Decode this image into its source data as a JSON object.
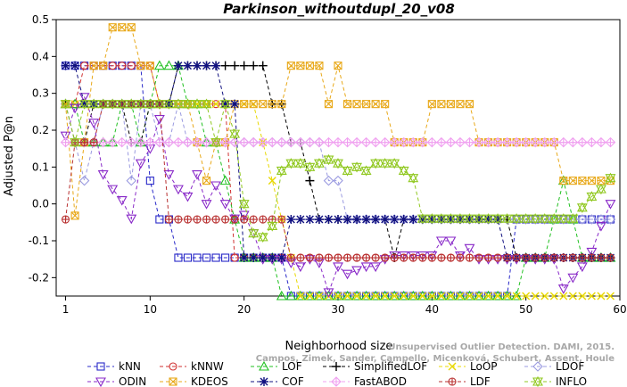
{
  "chart_data": {
    "type": "line",
    "title": "Parkinson_withoutdupl_20_v08",
    "xlabel": "Neighborhood size",
    "ylabel": "Adjusted P@n",
    "xlim": [
      0,
      60
    ],
    "ylim": [
      -0.25,
      0.5
    ],
    "x_ticks": [
      1,
      10,
      20,
      30,
      40,
      50,
      60
    ],
    "y_ticks": [
      -0.2,
      -0.1,
      0.0,
      0.1,
      0.2,
      0.3,
      0.4,
      0.5
    ],
    "y_tick_labels": [
      "-0.2",
      "-0.1",
      "0.0",
      "0.1",
      "0.2",
      "0.3",
      "0.4",
      "0.5"
    ],
    "grid": false,
    "legend_position": "bottom",
    "credit": [
      "Campos, Zimek, Sander, Campello, Micenková, Schubert, Assent, Houle",
      "Unsupervised Outlier Detection. DAMI, 2015."
    ],
    "x": [
      1,
      2,
      3,
      4,
      5,
      6,
      7,
      8,
      9,
      10,
      11,
      12,
      13,
      14,
      15,
      16,
      17,
      18,
      19,
      20,
      21,
      22,
      23,
      24,
      25,
      26,
      27,
      28,
      29,
      30,
      31,
      32,
      33,
      34,
      35,
      36,
      37,
      38,
      39,
      40,
      41,
      42,
      43,
      44,
      45,
      46,
      47,
      48,
      49,
      50,
      51,
      52,
      53,
      54,
      55,
      56,
      57,
      58,
      59
    ],
    "series": [
      {
        "name": "kNN",
        "color": "#2828c8",
        "marker": "square",
        "values": [
          0.375,
          0.375,
          0.375,
          0.375,
          0.375,
          0.375,
          0.375,
          0.375,
          0.375,
          0.063,
          -0.042,
          -0.042,
          -0.146,
          -0.146,
          -0.146,
          -0.146,
          -0.146,
          -0.146,
          -0.146,
          -0.146,
          -0.146,
          -0.146,
          -0.146,
          -0.146,
          -0.25,
          -0.25,
          -0.25,
          -0.25,
          -0.25,
          -0.25,
          -0.25,
          -0.25,
          -0.25,
          -0.25,
          -0.25,
          -0.25,
          -0.25,
          -0.25,
          -0.25,
          -0.25,
          -0.25,
          -0.25,
          -0.25,
          -0.25,
          -0.25,
          -0.25,
          -0.25,
          -0.25,
          -0.042,
          -0.042,
          -0.042,
          -0.042,
          -0.042,
          -0.042,
          -0.042,
          -0.042,
          -0.042,
          -0.042,
          -0.042
        ]
      },
      {
        "name": "kNNW",
        "color": "#d03030",
        "marker": "circle",
        "values": [
          0.271,
          0.271,
          0.375,
          0.375,
          0.375,
          0.375,
          0.375,
          0.375,
          0.375,
          0.375,
          0.271,
          0.271,
          0.271,
          0.271,
          0.271,
          0.271,
          0.271,
          0.271,
          -0.146,
          -0.146,
          -0.146,
          -0.146,
          -0.146,
          -0.146,
          -0.146,
          -0.146,
          -0.146,
          -0.146,
          -0.146,
          -0.146,
          -0.146,
          -0.146,
          -0.146,
          -0.146,
          -0.146,
          -0.146,
          -0.146,
          -0.146,
          -0.146,
          -0.146,
          -0.146,
          -0.146,
          -0.146,
          -0.146,
          -0.146,
          -0.146,
          -0.146,
          -0.146,
          -0.146,
          -0.146,
          -0.146,
          -0.146,
          -0.146,
          -0.146,
          -0.146,
          -0.146,
          -0.146,
          -0.146,
          -0.146
        ]
      },
      {
        "name": "LOF",
        "color": "#20c020",
        "marker": "triangle",
        "values": [
          0.271,
          0.271,
          0.167,
          0.167,
          0.167,
          0.167,
          0.271,
          0.271,
          0.167,
          0.271,
          0.375,
          0.375,
          0.375,
          0.271,
          0.271,
          0.167,
          0.167,
          0.063,
          -0.042,
          -0.146,
          -0.146,
          -0.146,
          -0.146,
          -0.25,
          -0.25,
          -0.25,
          -0.25,
          -0.25,
          -0.25,
          -0.25,
          -0.25,
          -0.25,
          -0.25,
          -0.25,
          -0.25,
          -0.25,
          -0.25,
          -0.25,
          -0.25,
          -0.25,
          -0.25,
          -0.25,
          -0.25,
          -0.25,
          -0.25,
          -0.25,
          -0.25,
          -0.25,
          -0.25,
          -0.146,
          -0.146,
          -0.146,
          -0.042,
          0.063,
          -0.042,
          -0.146,
          -0.146,
          -0.146,
          -0.146
        ]
      },
      {
        "name": "SimplifiedLOF",
        "color": "#000000",
        "marker": "plus",
        "values": [
          0.271,
          0.167,
          0.167,
          0.271,
          0.271,
          0.271,
          0.271,
          0.167,
          0.167,
          0.271,
          0.271,
          0.271,
          0.375,
          0.375,
          0.375,
          0.375,
          0.375,
          0.375,
          0.375,
          0.375,
          0.375,
          0.375,
          0.271,
          0.271,
          0.167,
          0.167,
          0.063,
          -0.042,
          -0.042,
          -0.042,
          -0.042,
          -0.042,
          -0.042,
          -0.042,
          -0.042,
          -0.146,
          -0.042,
          -0.042,
          -0.042,
          -0.042,
          -0.042,
          -0.042,
          -0.042,
          -0.042,
          -0.042,
          -0.042,
          -0.042,
          -0.042,
          -0.146,
          -0.146,
          -0.146,
          -0.146,
          -0.146,
          -0.146,
          -0.146,
          -0.146,
          -0.146,
          -0.146,
          -0.146
        ]
      },
      {
        "name": "LoOP",
        "color": "#e8d800",
        "marker": "x",
        "values": [
          0.271,
          0.271,
          0.271,
          0.271,
          0.271,
          0.271,
          0.271,
          0.271,
          0.271,
          0.271,
          0.271,
          0.271,
          0.271,
          0.271,
          0.271,
          0.271,
          0.271,
          0.271,
          0.271,
          0.271,
          0.271,
          0.167,
          0.063,
          -0.042,
          -0.146,
          -0.25,
          -0.25,
          -0.25,
          -0.25,
          -0.25,
          -0.25,
          -0.25,
          -0.25,
          -0.25,
          -0.25,
          -0.25,
          -0.25,
          -0.25,
          -0.25,
          -0.25,
          -0.25,
          -0.25,
          -0.25,
          -0.25,
          -0.25,
          -0.25,
          -0.25,
          -0.25,
          -0.25,
          -0.25,
          -0.25,
          -0.25,
          -0.25,
          -0.25,
          -0.25,
          -0.25,
          -0.25,
          -0.25,
          -0.25
        ]
      },
      {
        "name": "LDOF",
        "color": "#9a9ae0",
        "marker": "diamond",
        "values": [
          0.271,
          0.167,
          0.063,
          0.167,
          0.271,
          0.271,
          0.271,
          0.063,
          0.271,
          0.271,
          0.167,
          0.167,
          0.271,
          0.167,
          0.167,
          0.167,
          0.167,
          0.167,
          0.167,
          0.167,
          0.167,
          0.167,
          0.167,
          0.167,
          0.167,
          0.167,
          0.167,
          0.167,
          0.063,
          0.063,
          -0.042,
          -0.042,
          -0.042,
          -0.042,
          -0.042,
          -0.042,
          -0.042,
          -0.042,
          -0.042,
          -0.042,
          -0.042,
          -0.042,
          -0.042,
          -0.042,
          -0.042,
          -0.042,
          -0.042,
          -0.042,
          -0.042,
          -0.042,
          -0.042,
          -0.042,
          -0.042,
          -0.042,
          -0.042,
          -0.042,
          -0.042,
          -0.042,
          -0.042
        ]
      },
      {
        "name": "ODIN",
        "color": "#8828c8",
        "marker": "triangle-down",
        "values": [
          0.185,
          0.26,
          0.29,
          0.22,
          0.08,
          0.04,
          0.01,
          -0.04,
          0.11,
          0.15,
          0.23,
          0.08,
          0.04,
          0.02,
          0.08,
          0.0,
          0.05,
          0.0,
          -0.04,
          -0.03,
          -0.08,
          -0.15,
          -0.15,
          -0.15,
          -0.16,
          -0.17,
          -0.15,
          -0.16,
          -0.24,
          -0.17,
          -0.19,
          -0.18,
          -0.17,
          -0.17,
          -0.15,
          -0.14,
          -0.14,
          -0.14,
          -0.14,
          -0.14,
          -0.1,
          -0.1,
          -0.14,
          -0.12,
          -0.15,
          -0.15,
          -0.15,
          -0.15,
          -0.15,
          -0.15,
          -0.15,
          -0.15,
          -0.15,
          -0.23,
          -0.2,
          -0.17,
          -0.13,
          -0.06,
          0.0
        ]
      },
      {
        "name": "KDEOS",
        "color": "#e8a818",
        "marker": "square-x",
        "values": [
          0.271,
          -0.032,
          0.167,
          0.375,
          0.375,
          0.479,
          0.479,
          0.479,
          0.375,
          0.375,
          0.271,
          0.271,
          0.271,
          0.271,
          0.167,
          0.063,
          0.167,
          0.167,
          0.271,
          0.271,
          0.271,
          0.271,
          0.271,
          0.271,
          0.375,
          0.375,
          0.375,
          0.375,
          0.271,
          0.375,
          0.271,
          0.271,
          0.271,
          0.271,
          0.271,
          0.167,
          0.167,
          0.167,
          0.167,
          0.271,
          0.271,
          0.271,
          0.271,
          0.271,
          0.167,
          0.167,
          0.167,
          0.167,
          0.167,
          0.167,
          0.167,
          0.167,
          0.167,
          0.063,
          0.063,
          0.063,
          0.063,
          0.063,
          0.063
        ]
      },
      {
        "name": "COF",
        "color": "#101080",
        "marker": "asterisk",
        "values": [
          0.375,
          0.375,
          0.271,
          0.271,
          0.271,
          0.271,
          0.271,
          0.271,
          0.271,
          0.271,
          0.271,
          0.271,
          0.375,
          0.375,
          0.375,
          0.375,
          0.375,
          0.271,
          0.271,
          -0.146,
          -0.146,
          -0.146,
          -0.146,
          -0.146,
          -0.042,
          -0.042,
          -0.042,
          -0.042,
          -0.042,
          -0.042,
          -0.042,
          -0.042,
          -0.042,
          -0.042,
          -0.042,
          -0.042,
          -0.042,
          -0.042,
          -0.042,
          -0.042,
          -0.042,
          -0.042,
          -0.042,
          -0.042,
          -0.042,
          -0.042,
          -0.042,
          -0.146,
          -0.146,
          -0.146,
          -0.146,
          -0.146,
          -0.146,
          -0.146,
          -0.146,
          -0.146,
          -0.146,
          -0.146,
          -0.146
        ]
      },
      {
        "name": "FastABOD",
        "color": "#f0a0f0",
        "marker": "diamond-plus",
        "values": [
          0.167,
          0.167,
          0.167,
          0.167,
          0.167,
          0.167,
          0.167,
          0.167,
          0.167,
          0.167,
          0.167,
          0.167,
          0.167,
          0.167,
          0.167,
          0.167,
          0.167,
          0.167,
          0.167,
          0.167,
          0.167,
          0.167,
          0.167,
          0.167,
          0.167,
          0.167,
          0.167,
          0.167,
          0.167,
          0.167,
          0.167,
          0.167,
          0.167,
          0.167,
          0.167,
          0.167,
          0.167,
          0.167,
          0.167,
          0.167,
          0.167,
          0.167,
          0.167,
          0.167,
          0.167,
          0.167,
          0.167,
          0.167,
          0.167,
          0.167,
          0.167,
          0.167,
          0.167,
          0.167,
          0.167,
          0.167,
          0.167,
          0.167,
          0.167
        ]
      },
      {
        "name": "LDF",
        "color": "#b83030",
        "marker": "circle-plus",
        "values": [
          -0.042,
          0.167,
          0.167,
          0.167,
          0.271,
          0.271,
          0.271,
          0.271,
          0.271,
          0.271,
          0.271,
          -0.042,
          -0.042,
          -0.042,
          -0.042,
          -0.042,
          -0.042,
          -0.042,
          -0.042,
          -0.042,
          -0.042,
          -0.042,
          -0.042,
          -0.042,
          -0.146,
          -0.146,
          -0.146,
          -0.146,
          -0.146,
          -0.146,
          -0.146,
          -0.146,
          -0.146,
          -0.146,
          -0.146,
          -0.146,
          -0.146,
          -0.146,
          -0.146,
          -0.146,
          -0.146,
          -0.146,
          -0.146,
          -0.146,
          -0.146,
          -0.146,
          -0.146,
          -0.146,
          -0.146,
          -0.146,
          -0.146,
          -0.146,
          -0.146,
          -0.146,
          -0.146,
          -0.146,
          -0.146,
          -0.146,
          -0.146
        ]
      },
      {
        "name": "INFLO",
        "color": "#90c820",
        "marker": "star",
        "values": [
          0.271,
          0.167,
          0.271,
          0.271,
          0.271,
          0.271,
          0.271,
          0.271,
          0.271,
          0.271,
          0.271,
          0.271,
          0.271,
          0.271,
          0.271,
          0.271,
          0.167,
          0.271,
          0.19,
          0.0,
          -0.08,
          -0.09,
          -0.06,
          0.09,
          0.11,
          0.11,
          0.1,
          0.11,
          0.12,
          0.11,
          0.09,
          0.1,
          0.09,
          0.11,
          0.11,
          0.11,
          0.09,
          0.07,
          -0.04,
          -0.04,
          -0.04,
          -0.04,
          -0.04,
          -0.04,
          -0.04,
          -0.04,
          -0.04,
          -0.04,
          -0.04,
          -0.04,
          -0.04,
          -0.04,
          -0.04,
          -0.04,
          -0.04,
          -0.01,
          0.02,
          0.04,
          0.07
        ]
      }
    ]
  }
}
